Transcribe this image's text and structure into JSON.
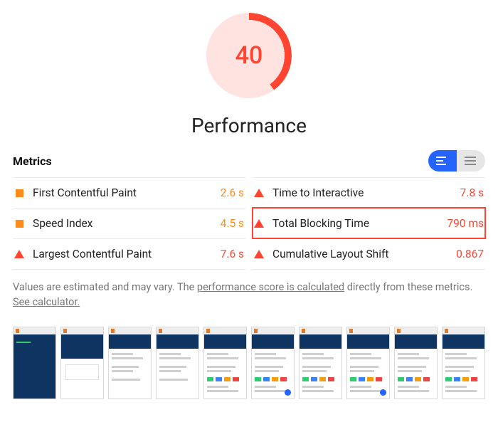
{
  "gauge": {
    "score": "40",
    "color": "#ff4532",
    "bg": "#ffe3e0"
  },
  "title": "Performance",
  "metrics_heading": "Metrics",
  "left": [
    {
      "marker": "square",
      "name": "First Contentful Paint",
      "value": "2.6 s",
      "valClass": "avg"
    },
    {
      "marker": "square",
      "name": "Speed Index",
      "value": "4.5 s",
      "valClass": "avg"
    },
    {
      "marker": "triangle",
      "name": "Largest Contentful Paint",
      "value": "7.6 s",
      "valClass": ""
    }
  ],
  "right": [
    {
      "marker": "triangle",
      "name": "Time to Interactive",
      "value": "7.8 s",
      "valClass": "",
      "hl": false
    },
    {
      "marker": "triangle",
      "name": "Total Blocking Time",
      "value": "790 ms",
      "valClass": "",
      "hl": true
    },
    {
      "marker": "triangle",
      "name": "Cumulative Layout Shift",
      "value": "0.867",
      "valClass": "",
      "hl": false
    }
  ],
  "note": {
    "pre": "Values are estimated and may vary. The ",
    "link1": "performance score is calculated",
    "mid": " directly from these metrics. ",
    "link2": "See calculator."
  },
  "thumb_count": 10
}
